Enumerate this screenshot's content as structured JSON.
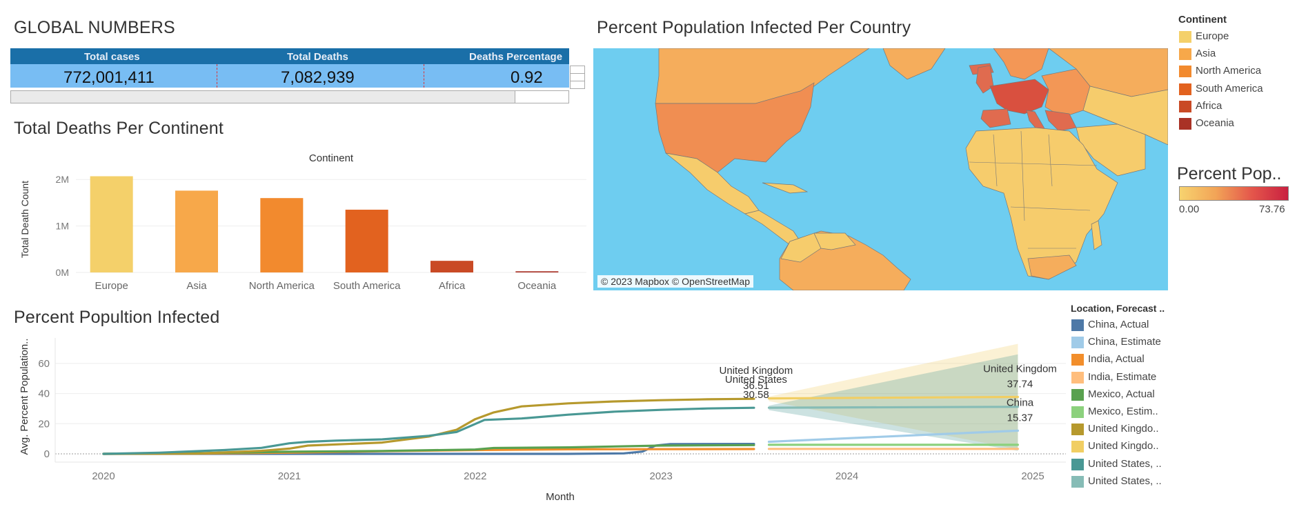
{
  "global_numbers": {
    "title": "GLOBAL NUMBERS",
    "headers": [
      "Total cases",
      "Total Deaths",
      "Deaths Percentage"
    ],
    "values": [
      "772,001,411",
      "7,082,939",
      "0.92"
    ]
  },
  "map": {
    "title": "Percent Population Infected Per Country",
    "credit": "© 2023 Mapbox © OpenStreetMap"
  },
  "continent_legend": {
    "title": "Continent",
    "items": [
      {
        "label": "Europe",
        "color": "#f4d06a"
      },
      {
        "label": "Asia",
        "color": "#f7a84a"
      },
      {
        "label": "North America",
        "color": "#f28a2e"
      },
      {
        "label": "South America",
        "color": "#e2621f"
      },
      {
        "label": "Africa",
        "color": "#c94a25"
      },
      {
        "label": "Oceania",
        "color": "#a93226"
      }
    ]
  },
  "percent_legend": {
    "title": "Percent Pop..",
    "min": "0.00",
    "max": "73.76"
  },
  "line_legend": {
    "title": "Location, Forecast ..",
    "items": [
      {
        "label": "China, Actual",
        "color": "#4e79a7"
      },
      {
        "label": "China, Estimate",
        "color": "#a0cbe8"
      },
      {
        "label": "India, Actual",
        "color": "#f28e2b"
      },
      {
        "label": "India, Estimate",
        "color": "#ffbe7d"
      },
      {
        "label": "Mexico, Actual",
        "color": "#59a14f"
      },
      {
        "label": "Mexico, Estim..",
        "color": "#8cd17d"
      },
      {
        "label": "United Kingdo..",
        "color": "#b6992d"
      },
      {
        "label": "United Kingdo..",
        "color": "#f1ce63"
      },
      {
        "label": "United States, ..",
        "color": "#499894"
      },
      {
        "label": "United States, ..",
        "color": "#86bcb6"
      }
    ]
  },
  "chart_data": [
    {
      "type": "bar",
      "title": "Total  Deaths Per Continent",
      "header": "Continent",
      "ylabel": "Total Death Count",
      "categories": [
        "Europe",
        "Asia",
        "North America",
        "South America",
        "Africa",
        "Oceania"
      ],
      "values": [
        2070000,
        1760000,
        1600000,
        1350000,
        250000,
        25000
      ],
      "colors": [
        "#f4d06a",
        "#f7a84a",
        "#f28a2e",
        "#e2621f",
        "#c94a25",
        "#a93226"
      ],
      "yticks": [
        {
          "v": 0,
          "label": "0M"
        },
        {
          "v": 1000000,
          "label": "1M"
        },
        {
          "v": 2000000,
          "label": "2M"
        }
      ],
      "ylim": [
        0,
        2300000
      ]
    },
    {
      "type": "line",
      "title": "Percent Popultion Infected",
      "xlabel": "Month",
      "ylabel": "Avg. Percent Population..",
      "xlim": [
        2020,
        2025.15
      ],
      "ylim": [
        -5,
        75
      ],
      "yticks": [
        0,
        20,
        40,
        60
      ],
      "xticks": [
        2020,
        2021,
        2022,
        2023,
        2024,
        2025
      ],
      "series": [
        {
          "name": "China, Actual",
          "color": "#4e79a7",
          "x": [
            2020.0,
            2020.5,
            2021.0,
            2021.5,
            2022.0,
            2022.5,
            2022.8,
            2022.9,
            2022.97,
            2023.05,
            2023.5
          ],
          "y": [
            0,
            0,
            0,
            0,
            0,
            0,
            0.3,
            1.5,
            5.5,
            6.5,
            6.6
          ]
        },
        {
          "name": "India, Actual",
          "color": "#f28e2b",
          "x": [
            2020.0,
            2020.5,
            2021.0,
            2021.5,
            2022.0,
            2022.5,
            2023.0,
            2023.5
          ],
          "y": [
            0,
            0.2,
            0.8,
            1.8,
            2.5,
            3.0,
            3.1,
            3.2
          ]
        },
        {
          "name": "Mexico, Actual",
          "color": "#59a14f",
          "x": [
            2020.0,
            2020.5,
            2021.0,
            2021.5,
            2022.0,
            2022.1,
            2022.5,
            2023.0,
            2023.5
          ],
          "y": [
            0,
            0.4,
            1.4,
            1.9,
            2.9,
            3.9,
            4.3,
            5.5,
            5.8
          ]
        },
        {
          "name": "United Kingdo..",
          "color": "#b6992d",
          "x": [
            2020.0,
            2020.5,
            2020.85,
            2021.0,
            2021.1,
            2021.5,
            2021.75,
            2021.9,
            2022.0,
            2022.1,
            2022.25,
            2022.5,
            2022.75,
            2023.0,
            2023.25,
            2023.5
          ],
          "y": [
            0,
            0.2,
            2.0,
            3.5,
            5.5,
            7.5,
            11.5,
            16.0,
            23.0,
            27.5,
            31.5,
            33.5,
            34.8,
            35.6,
            36.2,
            36.51
          ]
        },
        {
          "name": "United States, ..",
          "color": "#499894",
          "x": [
            2020.0,
            2020.3,
            2020.65,
            2020.85,
            2021.0,
            2021.1,
            2021.25,
            2021.5,
            2021.75,
            2021.9,
            2022.05,
            2022.25,
            2022.5,
            2022.75,
            2023.0,
            2023.25,
            2023.5
          ],
          "y": [
            0,
            0.8,
            2.5,
            4.0,
            7.0,
            8.0,
            8.8,
            9.6,
            12.0,
            14.5,
            22.5,
            23.5,
            26.0,
            28.0,
            29.2,
            30.1,
            30.58
          ]
        },
        {
          "name": "China, Estimate",
          "color": "#a0cbe8",
          "x": [
            2023.58,
            2024.92
          ],
          "y": [
            8.0,
            15.37
          ]
        },
        {
          "name": "India, Estimate",
          "color": "#ffbe7d",
          "x": [
            2023.58,
            2024.92
          ],
          "y": [
            3.3,
            3.3
          ]
        },
        {
          "name": "Mexico, Estim..",
          "color": "#8cd17d",
          "x": [
            2023.58,
            2024.92
          ],
          "y": [
            6.0,
            6.0
          ]
        },
        {
          "name": "United Kingdo..",
          "color": "#f1ce63",
          "x": [
            2023.58,
            2024.92
          ],
          "y": [
            36.8,
            37.74
          ]
        },
        {
          "name": "United States, ..",
          "color": "#86bcb6",
          "x": [
            2023.58,
            2024.92
          ],
          "y": [
            30.6,
            31.2
          ]
        }
      ],
      "bands": [
        {
          "color": "#f1ce63",
          "x": [
            2023.58,
            2024.92
          ],
          "upper": [
            38,
            73
          ],
          "lower": [
            35,
            3
          ]
        },
        {
          "color": "#499894",
          "x": [
            2023.58,
            2024.92
          ],
          "upper": [
            32,
            66
          ],
          "lower": [
            29,
            2
          ]
        }
      ],
      "annotations": [
        {
          "x": 2023.5,
          "y": 36.51,
          "name": "United Kingdom",
          "value": "36.51"
        },
        {
          "x": 2023.5,
          "y": 30.58,
          "name": "United States",
          "value": "30.58"
        },
        {
          "x": 2024.92,
          "y": 37.74,
          "name": "United Kingdom",
          "value": "37.74"
        },
        {
          "x": 2024.92,
          "y": 15.37,
          "name": "China",
          "value": "15.37"
        }
      ]
    }
  ]
}
